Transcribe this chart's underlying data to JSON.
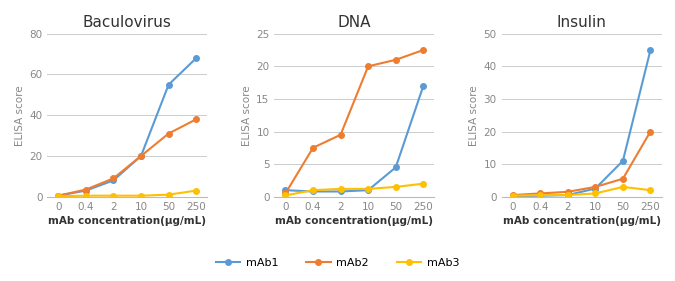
{
  "x_labels": [
    "0",
    "0.4",
    "2",
    "10",
    "50",
    "250"
  ],
  "x_positions": [
    0,
    1,
    2,
    3,
    4,
    5
  ],
  "panels": [
    {
      "title": "Baculovirus",
      "ylabel": "ELISA score",
      "ylim": [
        0,
        80
      ],
      "yticks": [
        0,
        20,
        40,
        60,
        80
      ],
      "series": {
        "mAb1": [
          0.5,
          3,
          8,
          20,
          55,
          68
        ],
        "mAb2": [
          0.5,
          3.5,
          9,
          20,
          31,
          38
        ],
        "mAb3": [
          0.2,
          0.5,
          0.5,
          0.5,
          1,
          3
        ]
      }
    },
    {
      "title": "DNA",
      "ylabel": "ELISA score",
      "ylim": [
        0,
        25
      ],
      "yticks": [
        0,
        5,
        10,
        15,
        20,
        25
      ],
      "series": {
        "mAb1": [
          1,
          0.8,
          0.8,
          1,
          4.5,
          17
        ],
        "mAb2": [
          0.5,
          7.5,
          9.5,
          20,
          21,
          22.5
        ],
        "mAb3": [
          0.2,
          1,
          1.2,
          1.2,
          1.5,
          2
        ]
      }
    },
    {
      "title": "Insulin",
      "ylabel": "ELISA score",
      "ylim": [
        0,
        50
      ],
      "yticks": [
        0,
        10,
        20,
        30,
        40,
        50
      ],
      "series": {
        "mAb1": [
          0.2,
          0.3,
          0.5,
          2.5,
          11,
          45
        ],
        "mAb2": [
          0.5,
          1,
          1.5,
          3,
          5.5,
          20
        ],
        "mAb3": [
          0.3,
          0.5,
          0.5,
          1,
          3,
          2
        ]
      }
    }
  ],
  "colors": {
    "mAb1": "#5B9BD5",
    "mAb2": "#ED7D31",
    "mAb3": "#FFC000"
  },
  "xlabel": "mAb concentration(μg/mL)",
  "legend_labels": [
    "mAb1",
    "mAb2",
    "mAb3"
  ],
  "marker": "o",
  "markersize": 4,
  "linewidth": 1.5,
  "background_color": "#ffffff",
  "title_fontsize": 11,
  "label_fontsize": 7.5,
  "tick_fontsize": 7.5,
  "legend_fontsize": 8
}
